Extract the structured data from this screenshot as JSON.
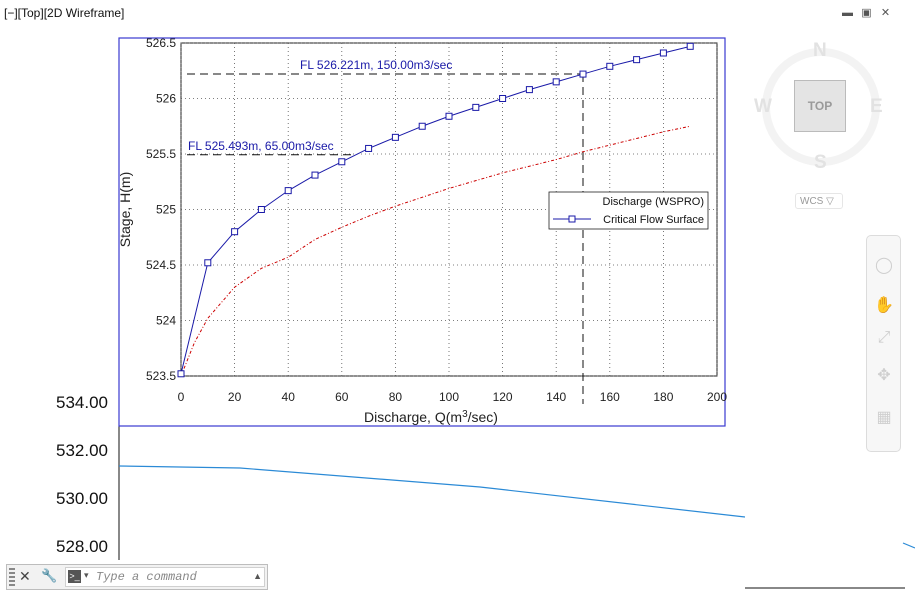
{
  "viewport": {
    "label": "[−][Top][2D Wireframe]",
    "controls": [
      "▬",
      "▣",
      "✕"
    ]
  },
  "drawing": {
    "y_labels": [
      "534.00",
      "532.00",
      "530.00",
      "528.00"
    ],
    "profile_color": "#2b8ad6"
  },
  "chart_data": {
    "type": "line",
    "xlabel": "Discharge, Q(m",
    "xlabel_sup": "3",
    "xlabel_end": "/sec)",
    "ylabel": "Stage, H(m)",
    "xlim": [
      0,
      200
    ],
    "ylim": [
      523.5,
      526.5
    ],
    "xticks": [
      "0",
      "20",
      "40",
      "60",
      "80",
      "100",
      "120",
      "140",
      "160",
      "180",
      "200"
    ],
    "yticks": [
      "523.5",
      "524",
      "524.5",
      "525",
      "525.5",
      "526",
      "526.5"
    ],
    "grid": true,
    "legend_position": "right-middle",
    "series": [
      {
        "name": "Discharge (WSPRO)",
        "color": "#cc0000",
        "style": "dash-dot",
        "x": [
          0,
          5,
          10,
          20,
          30,
          40,
          50,
          60,
          70,
          80,
          90,
          100,
          110,
          120,
          130,
          140,
          150,
          160,
          170,
          180,
          190
        ],
        "y": [
          523.5,
          523.8,
          524.02,
          524.3,
          524.47,
          524.57,
          524.73,
          524.84,
          524.94,
          525.03,
          525.11,
          525.19,
          525.26,
          525.33,
          525.39,
          525.45,
          525.52,
          525.58,
          525.64,
          525.7,
          525.75
        ]
      },
      {
        "name": "Critical Flow Surface",
        "color": "#1a1aa8",
        "style": "solid-square-markers",
        "x": [
          0,
          10,
          20,
          30,
          40,
          50,
          60,
          70,
          80,
          90,
          100,
          110,
          120,
          130,
          140,
          150,
          160,
          170,
          180,
          190
        ],
        "y": [
          523.52,
          524.52,
          524.8,
          525.0,
          525.17,
          525.31,
          525.43,
          525.55,
          525.65,
          525.75,
          525.84,
          525.92,
          526.0,
          526.08,
          526.15,
          526.22,
          526.29,
          526.35,
          526.41,
          526.47
        ]
      }
    ],
    "annotations": [
      {
        "text": "FL 526.221m, 150.00m3/sec",
        "x": 150,
        "y": 526.221
      },
      {
        "text": "FL 525.493m, 65.00m3/sec",
        "x": 65,
        "y": 525.493
      }
    ]
  },
  "viewcube": {
    "top_face": "TOP",
    "north": "N",
    "south": "S",
    "east": "E",
    "west": "W",
    "wcs_label": "WCS ▽"
  },
  "navbar": {
    "icons": [
      "steering-wheel-icon",
      "pan-icon",
      "zoom-icon",
      "orbit-icon",
      "showmotion-icon"
    ]
  },
  "command_line": {
    "placeholder": "Type a command",
    "close_glyph": "✕",
    "tool_glyph": "🔧",
    "prompt_glyph": ">_",
    "caret_glyph": "▾",
    "up_glyph": "▲"
  }
}
